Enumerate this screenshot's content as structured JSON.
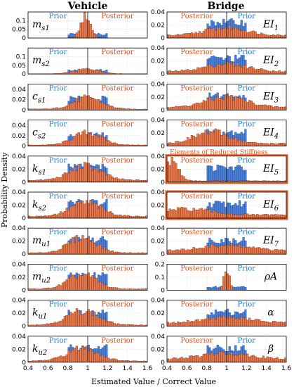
{
  "column_titles": [
    "Vehicle",
    "Bridge"
  ],
  "ylabel": "Probability Density",
  "xlabel": "Estimated Value / Correct Value",
  "legend": {
    "prior": "Prior",
    "posterior": "Posterior"
  },
  "annotation": "Elements of Reduced Stiffness",
  "colors": {
    "prior": "#4a7fd6",
    "posterior": "#e8774a",
    "highlight": "#e0531f",
    "grid": "#cfcfcf",
    "axis": "#000000"
  },
  "chart_data": {
    "type": "bar",
    "xlim": [
      0.4,
      1.6
    ],
    "xticks": [
      "0.4",
      "0.6",
      "0.8",
      "1",
      "1.2",
      "1.4",
      "1.6"
    ],
    "bin_width": 0.02,
    "grid": true,
    "panels": [
      {
        "col": 0,
        "row": 0,
        "label": "m",
        "sub": "s1",
        "ylim": [
          0,
          0.15
        ],
        "yticks": [
          "0",
          "0.05",
          "0.1"
        ],
        "prior": {
          "lo": 0.8,
          "hi": 1.2,
          "value": 0.022
        },
        "posterior": {
          "peak": 0.98,
          "spread": 0.07,
          "max": 0.13,
          "floor": 0
        }
      },
      {
        "col": 0,
        "row": 1,
        "label": "m",
        "sub": "s2",
        "ylim": [
          0,
          0.15
        ],
        "yticks": [
          "0",
          "0.05",
          "0.1"
        ],
        "prior": {
          "lo": 0.8,
          "hi": 1.2,
          "value": 0.022
        },
        "posterior": {
          "peak": 1.0,
          "spread": 0.17,
          "max": 0.03,
          "floor": 0.002
        }
      },
      {
        "col": 0,
        "row": 2,
        "label": "c",
        "sub": "s1",
        "ylim": [
          0,
          0.05
        ],
        "yticks": [
          "0",
          "0.02",
          "0.04"
        ],
        "prior": {
          "lo": 0.8,
          "hi": 1.2,
          "value": 0.022
        },
        "posterior": {
          "peak": 1.0,
          "spread": 0.2,
          "max": 0.024,
          "floor": 0.002
        }
      },
      {
        "col": 0,
        "row": 3,
        "label": "c",
        "sub": "s2",
        "ylim": [
          0,
          0.05
        ],
        "yticks": [
          "0",
          "0.02",
          "0.04"
        ],
        "prior": {
          "lo": 0.8,
          "hi": 1.2,
          "value": 0.022
        },
        "posterior": {
          "peak": 1.0,
          "spread": 0.2,
          "max": 0.026,
          "floor": 0.002
        }
      },
      {
        "col": 0,
        "row": 4,
        "label": "k",
        "sub": "s1",
        "ylim": [
          0,
          0.04
        ],
        "yticks": [
          "0",
          "0.02",
          "0.04"
        ],
        "prior": {
          "lo": 0.8,
          "hi": 1.2,
          "value": 0.024
        },
        "posterior": {
          "peak": 0.98,
          "spread": 0.22,
          "max": 0.025,
          "floor": 0.003
        }
      },
      {
        "col": 0,
        "row": 5,
        "label": "k",
        "sub": "s2",
        "ylim": [
          0,
          0.04
        ],
        "yticks": [
          "0",
          "0.02",
          "0.04"
        ],
        "prior": {
          "lo": 0.8,
          "hi": 1.2,
          "value": 0.024
        },
        "posterior": {
          "peak": 0.98,
          "spread": 0.22,
          "max": 0.024,
          "floor": 0.003
        }
      },
      {
        "col": 0,
        "row": 6,
        "label": "m",
        "sub": "u1",
        "ylim": [
          0,
          0.04
        ],
        "yticks": [
          "0",
          "0.02",
          "0.04"
        ],
        "prior": {
          "lo": 0.8,
          "hi": 1.2,
          "value": 0.022
        },
        "posterior": {
          "peak": 0.95,
          "spread": 0.2,
          "max": 0.026,
          "floor": 0.002
        }
      },
      {
        "col": 0,
        "row": 7,
        "label": "m",
        "sub": "u2",
        "ylim": [
          0,
          0.04
        ],
        "yticks": [
          "0",
          "0.02",
          "0.04"
        ],
        "prior": {
          "lo": 0.8,
          "hi": 1.2,
          "value": 0.022
        },
        "posterior": {
          "peak": 0.95,
          "spread": 0.2,
          "max": 0.024,
          "floor": 0.002
        }
      },
      {
        "col": 0,
        "row": 8,
        "label": "k",
        "sub": "u1",
        "ylim": [
          0,
          0.04
        ],
        "yticks": [
          "0",
          "0.02",
          "0.04"
        ],
        "prior": {
          "lo": 0.8,
          "hi": 1.2,
          "value": 0.022
        },
        "posterior": {
          "peak": 0.95,
          "spread": 0.22,
          "max": 0.024,
          "floor": 0.002
        }
      },
      {
        "col": 0,
        "row": 9,
        "label": "k",
        "sub": "u2",
        "ylim": [
          0,
          0.04
        ],
        "yticks": [
          "0",
          "0.02",
          "0.04"
        ],
        "prior": {
          "lo": 0.8,
          "hi": 1.2,
          "value": 0.022
        },
        "posterior": {
          "peak": 0.95,
          "spread": 0.22,
          "max": 0.022,
          "floor": 0.002
        }
      },
      {
        "col": 1,
        "row": 0,
        "label": "EI",
        "sub": "1",
        "ylim": [
          0,
          0.04
        ],
        "yticks": [
          "0",
          "0.02",
          "0.04"
        ],
        "prior": {
          "lo": 0.8,
          "hi": 1.2,
          "value": 0.024
        },
        "posterior": {
          "peak": 1.0,
          "spread": 0.3,
          "max": 0.016,
          "floor": 0.004
        }
      },
      {
        "col": 1,
        "row": 1,
        "label": "EI",
        "sub": "2",
        "ylim": [
          0,
          0.04
        ],
        "yticks": [
          "0",
          "0.02",
          "0.04"
        ],
        "prior": {
          "lo": 0.8,
          "hi": 1.2,
          "value": 0.024
        },
        "posterior": {
          "peak": 1.0,
          "spread": 0.3,
          "max": 0.016,
          "floor": 0.004
        }
      },
      {
        "col": 1,
        "row": 2,
        "label": "EI",
        "sub": "3",
        "ylim": [
          0,
          0.04
        ],
        "yticks": [
          "0",
          "0.02",
          "0.04"
        ],
        "prior": {
          "lo": 0.8,
          "hi": 1.2,
          "value": 0.022
        },
        "posterior": {
          "peak": 1.0,
          "spread": 0.3,
          "max": 0.02,
          "floor": 0.004
        }
      },
      {
        "col": 1,
        "row": 3,
        "label": "EI",
        "sub": "4",
        "ylim": [
          0,
          0.04
        ],
        "yticks": [
          "0",
          "0.02",
          "0.04"
        ],
        "prior": {
          "lo": 0.8,
          "hi": 1.2,
          "value": 0.022
        },
        "posterior": {
          "peak": 0.85,
          "spread": 0.25,
          "max": 0.022,
          "floor": 0.004
        }
      },
      {
        "col": 1,
        "row": 4,
        "label": "EI",
        "sub": "5",
        "ylim": [
          0,
          0.04
        ],
        "yticks": [
          "0",
          "0.02",
          "0.04"
        ],
        "prior": {
          "lo": 0.8,
          "hi": 1.2,
          "value": 0.022
        },
        "posterior": {
          "peak": 0.44,
          "spread": 0.1,
          "max": 0.034,
          "floor": 0.002
        },
        "highlight": true
      },
      {
        "col": 1,
        "row": 5,
        "label": "EI",
        "sub": "6",
        "ylim": [
          0,
          0.04
        ],
        "yticks": [
          "0",
          "0.02",
          "0.04"
        ],
        "prior": {
          "lo": 0.8,
          "hi": 1.2,
          "value": 0.022
        },
        "posterior": {
          "peak": 0.6,
          "spread": 0.35,
          "max": 0.014,
          "floor": 0.005
        },
        "highlight": true
      },
      {
        "col": 1,
        "row": 6,
        "label": "EI",
        "sub": "7",
        "ylim": [
          0,
          0.04
        ],
        "yticks": [
          "0",
          "0.02",
          "0.04"
        ],
        "prior": {
          "lo": 0.8,
          "hi": 1.2,
          "value": 0.022
        },
        "posterior": {
          "peak": 1.0,
          "spread": 0.35,
          "max": 0.014,
          "floor": 0.005
        }
      },
      {
        "col": 1,
        "row": 7,
        "label": "ρA",
        "sub": "",
        "ylim": [
          0,
          0.2
        ],
        "yticks": [
          "0",
          "0.1",
          "0.2"
        ],
        "prior": {
          "lo": 0.8,
          "hi": 1.2,
          "value": 0.025
        },
        "posterior": {
          "peak": 1.0,
          "spread": 0.04,
          "max": 0.17,
          "floor": 0
        }
      },
      {
        "col": 1,
        "row": 8,
        "label": "α",
        "sub": "",
        "ylim": [
          0,
          0.04
        ],
        "yticks": [
          "0",
          "0.02",
          "0.04"
        ],
        "prior": {
          "lo": 0.8,
          "hi": 1.2,
          "value": 0.022
        },
        "posterior": {
          "peak": 1.0,
          "spread": 0.35,
          "max": 0.014,
          "floor": 0.005
        }
      },
      {
        "col": 1,
        "row": 9,
        "label": "β",
        "sub": "",
        "ylim": [
          0,
          0.04
        ],
        "yticks": [
          "0",
          "0.02",
          "0.04"
        ],
        "prior": {
          "lo": 0.8,
          "hi": 1.2,
          "value": 0.022
        },
        "posterior": {
          "peak": 1.0,
          "spread": 0.35,
          "max": 0.014,
          "floor": 0.005
        }
      }
    ]
  }
}
